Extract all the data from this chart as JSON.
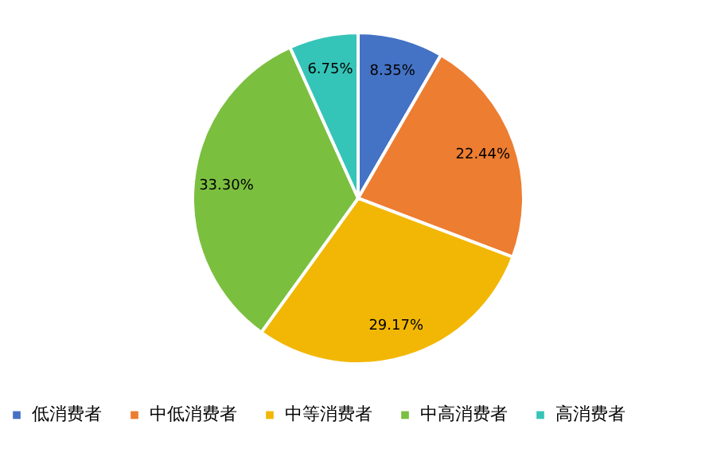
{
  "chart_data": {
    "type": "pie",
    "categories": [
      "低消费者",
      "中低消费者",
      "中等消费者",
      "中高消费者",
      "高消费者"
    ],
    "values": [
      8.35,
      22.44,
      29.17,
      33.3,
      6.75
    ],
    "colors": [
      "#4472c4",
      "#ed7d31",
      "#f2b705",
      "#7bbf3f",
      "#35c4b8"
    ],
    "value_labels": [
      "8.35%",
      "22.44%",
      "29.17%",
      "33.30%",
      "6.75%"
    ],
    "legend": "bottom"
  }
}
